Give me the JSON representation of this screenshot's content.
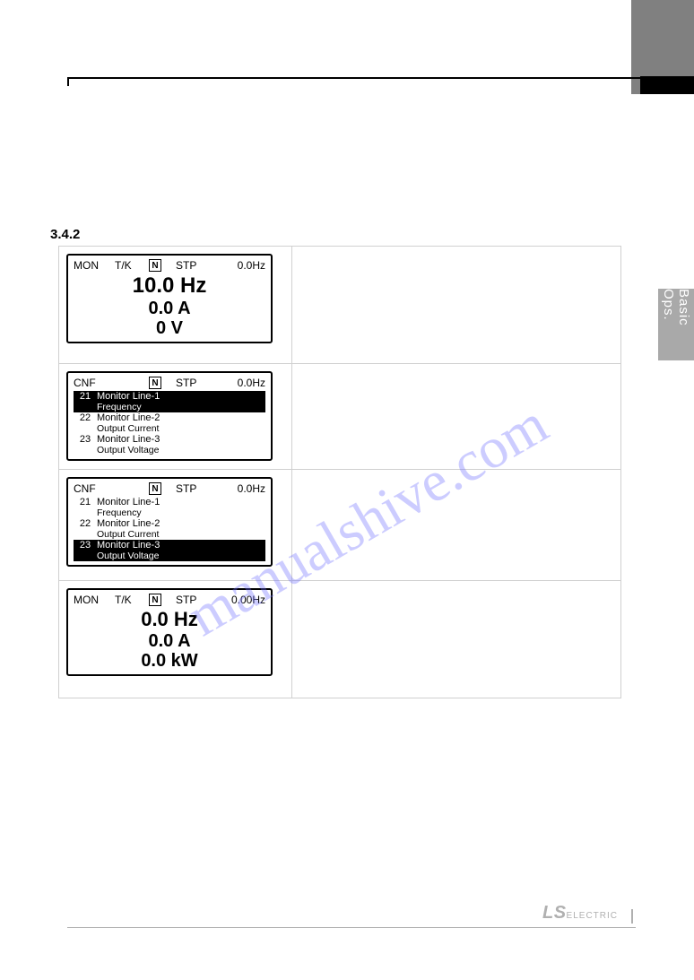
{
  "sideTab": "Basic Ops.",
  "sectionNumber": "3.4.2",
  "watermark": "manualshive.com",
  "footer": {
    "brandBig": "LS",
    "brandSmall": "ELECTRIC"
  },
  "panels": [
    {
      "kind": "mon",
      "header": {
        "mode": "MON",
        "tk": "T/K",
        "n": "N",
        "stp": "STP",
        "hz": "0.0Hz"
      },
      "big": [
        "10.0 Hz",
        "0.0 A",
        "0 V"
      ]
    },
    {
      "kind": "cnf",
      "header": {
        "mode": "CNF",
        "tk": "",
        "n": "N",
        "stp": "STP",
        "hz": "0.0Hz"
      },
      "rows": [
        {
          "num": "21",
          "lbl": "Monitor Line-1",
          "sub": "Frequency",
          "sel": true
        },
        {
          "num": "22",
          "lbl": "Monitor Line-2",
          "sub": "Output Current",
          "sel": false
        },
        {
          "num": "23",
          "lbl": "Monitor Line-3",
          "sub": "Output Voltage",
          "sel": false
        }
      ]
    },
    {
      "kind": "cnf",
      "header": {
        "mode": "CNF",
        "tk": "",
        "n": "N",
        "stp": "STP",
        "hz": "0.0Hz"
      },
      "rows": [
        {
          "num": "21",
          "lbl": "Monitor Line-1",
          "sub": "Frequency",
          "sel": false
        },
        {
          "num": "22",
          "lbl": "Monitor Line-2",
          "sub": "Output Current",
          "sel": false
        },
        {
          "num": "23",
          "lbl": "Monitor Line-3",
          "sub": "Output Voltage",
          "sel": true
        }
      ]
    },
    {
      "kind": "mon",
      "header": {
        "mode": "MON",
        "tk": "T/K",
        "n": "N",
        "stp": "STP",
        "hz": "0.00Hz"
      },
      "big": [
        "0.0 Hz",
        "0.0 A",
        "0.0 kW"
      ]
    }
  ]
}
